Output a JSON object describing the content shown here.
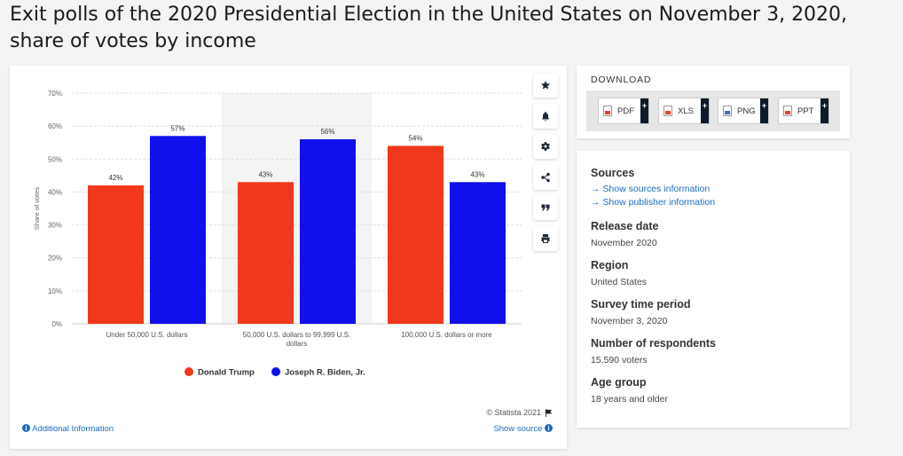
{
  "page": {
    "title": "Exit polls of the 2020 Presidential Election in the United States on November 3, 2020, share of votes by income"
  },
  "toolbar": {
    "tools": [
      {
        "name": "favorite-button",
        "icon": "star-icon"
      },
      {
        "name": "notification-button",
        "icon": "bell-icon"
      },
      {
        "name": "settings-button",
        "icon": "gear-icon"
      },
      {
        "name": "share-button",
        "icon": "share-icon"
      },
      {
        "name": "cite-button",
        "icon": "quote-icon"
      },
      {
        "name": "print-button",
        "icon": "printer-icon"
      }
    ]
  },
  "footer": {
    "additional_info": "Additional Information",
    "copyright": "© Statista 2021",
    "show_source": "Show source"
  },
  "download": {
    "heading": "DOWNLOAD",
    "buttons": [
      {
        "label": "PDF",
        "color": "#e0402a"
      },
      {
        "label": "XLS",
        "color": "#e0402a"
      },
      {
        "label": "PNG",
        "color": "#3a6fb0"
      },
      {
        "label": "PPT",
        "color": "#e0402a"
      }
    ],
    "plus": "+"
  },
  "info": {
    "sources_heading": "Sources",
    "sources_link": "Show sources information",
    "publisher_link": "Show publisher information",
    "link_arrow": "→",
    "release_heading": "Release date",
    "release_value": "November 2020",
    "region_heading": "Region",
    "region_value": "United States",
    "survey_heading": "Survey time period",
    "survey_value": "November 3, 2020",
    "respondents_heading": "Number of respondents",
    "respondents_value": "15,590 voters",
    "age_heading": "Age group",
    "age_value": "18 years and older"
  },
  "chart_data": {
    "type": "bar",
    "title": "",
    "xlabel": "",
    "ylabel": "Share of votes",
    "ylim": [
      0,
      70
    ],
    "yticks": [
      0,
      10,
      20,
      30,
      40,
      50,
      60,
      70
    ],
    "ytick_suffix": "%",
    "categories": [
      [
        "Under 50,000 U.S. dollars"
      ],
      [
        "50,000 U.S. dollars to 99,999 U.S.",
        "dollars"
      ],
      [
        "100,000 U.S. dollars or more"
      ]
    ],
    "series": [
      {
        "name": "Donald Trump",
        "color": "#f0381c",
        "values": [
          42,
          43,
          54
        ]
      },
      {
        "name": "Joseph R. Biden, Jr.",
        "color": "#1010ea",
        "values": [
          57,
          56,
          43
        ]
      }
    ],
    "legend": "bottom-center",
    "highlight_category": 1
  }
}
